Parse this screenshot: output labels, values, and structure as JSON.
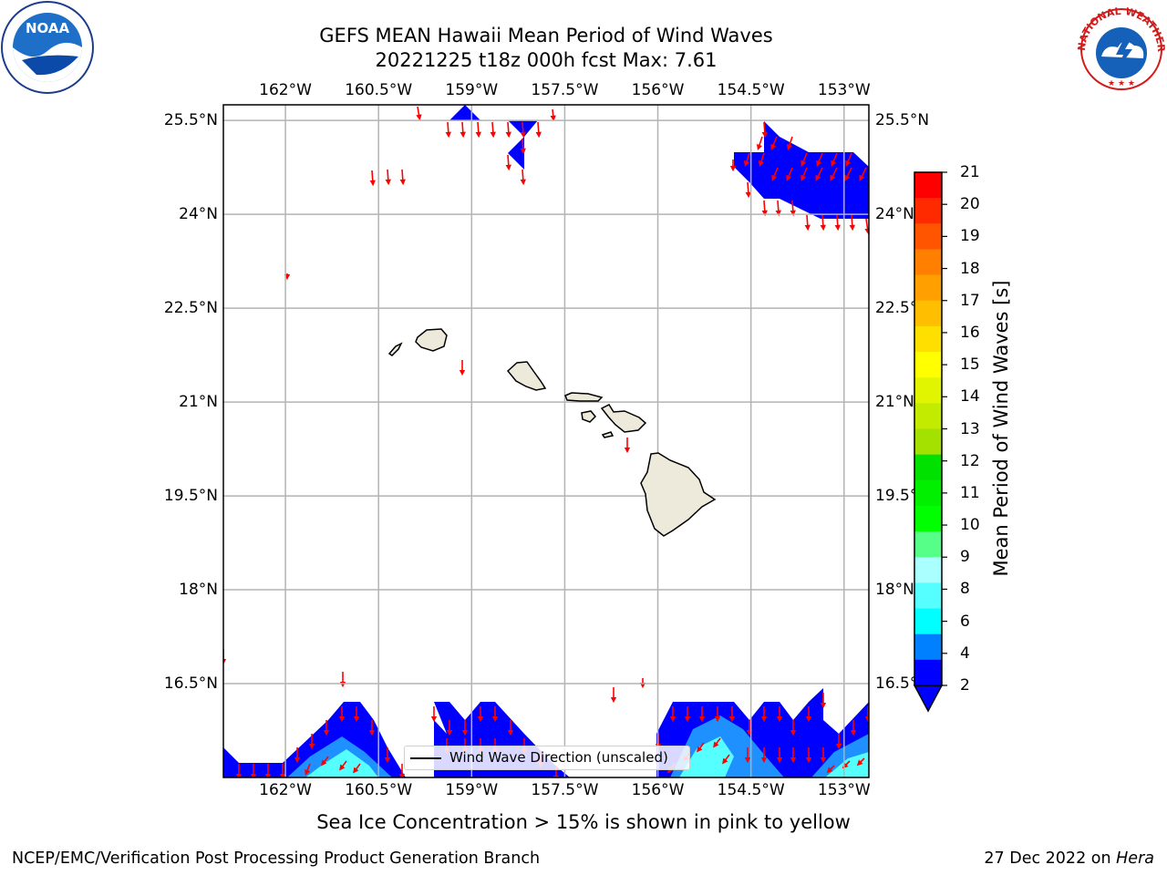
{
  "title": {
    "line1": "GEFS MEAN Hawaii Mean Period of Wind Waves",
    "line2": "20221225 t18z 000h fcst   Max: 7.61"
  },
  "axes": {
    "lon_ticks": [
      "162°W",
      "160.5°W",
      "159°W",
      "157.5°W",
      "156°W",
      "154.5°W",
      "153°W"
    ],
    "lat_ticks": [
      "25.5°N",
      "24°N",
      "22.5°N",
      "21°N",
      "19.5°N",
      "18°N",
      "16.5°N"
    ],
    "lon_range": [
      -163,
      -152.6
    ],
    "lat_range": [
      15,
      25.75
    ]
  },
  "colorbar": {
    "label": "Mean Period of Wind Waves [s]",
    "ticks": [
      "21",
      "20",
      "19",
      "18",
      "17",
      "16",
      "15",
      "14",
      "13",
      "12",
      "11",
      "10",
      "9",
      "8",
      "6",
      "4",
      "2"
    ],
    "colors": [
      "#ff0000",
      "#ff2a00",
      "#ff5500",
      "#ff7f00",
      "#ff9f00",
      "#ffbf00",
      "#ffdf00",
      "#ffff00",
      "#e1f500",
      "#c3eb00",
      "#a5e100",
      "#00e100",
      "#00f000",
      "#00ff00",
      "#55ff88",
      "#aaffff",
      "#55ffff",
      "#00ffff",
      "#0080ff",
      "#0000ff"
    ]
  },
  "legend": {
    "label": "Wind Wave Direction (unscaled)"
  },
  "caption": "Sea Ice Concentration > 15% is shown in pink to yellow",
  "footer": {
    "left": "NCEP/EMC/Verification Post Processing Product Generation Branch",
    "date": "27 Dec 2022 on",
    "host": "Hera"
  },
  "logos": {
    "noaa": "NOAA",
    "nws": "NATIONAL WEATHER SERVICE"
  },
  "colors": {
    "land": "#eeeadb",
    "ocean_low": "#0000ff",
    "ocean_mid": "#1e90ff",
    "ocean_high": "#55ffff",
    "arrow": "#ff0000"
  }
}
